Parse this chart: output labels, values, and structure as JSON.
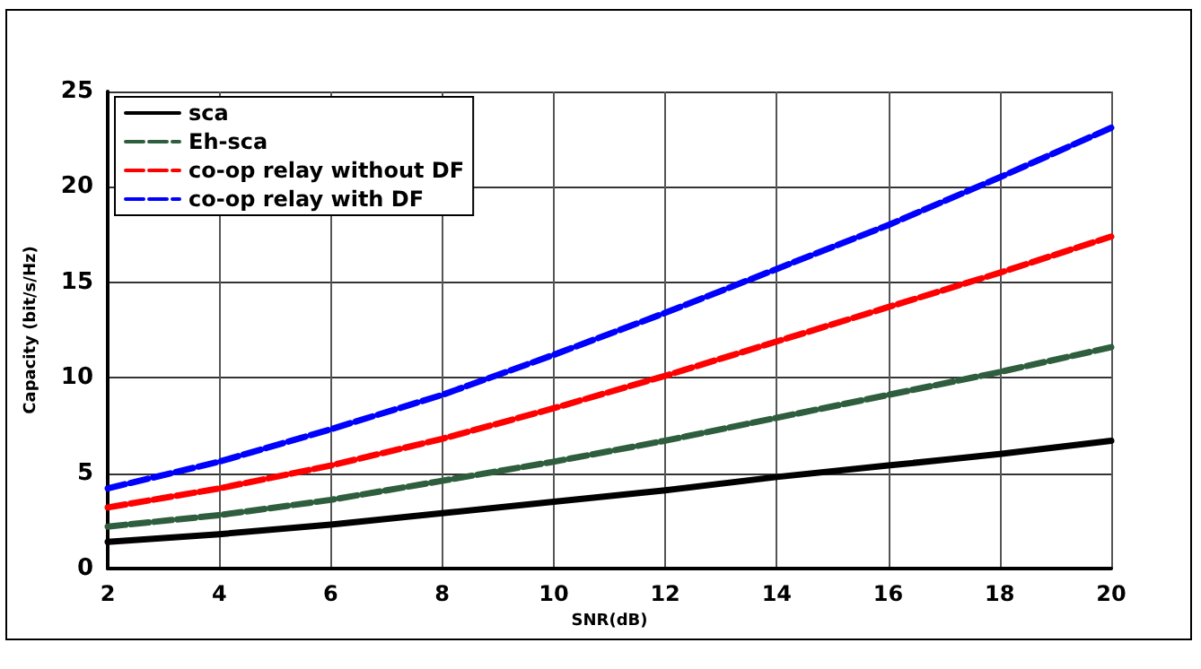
{
  "chart_data": {
    "type": "line",
    "xlabel": "SNR(dB)",
    "ylabel": "Capacity (bit/s/Hz)",
    "x": [
      2,
      4,
      6,
      8,
      10,
      12,
      14,
      16,
      18,
      20
    ],
    "series": [
      {
        "name": "sca",
        "color": "#000000",
        "line_style": "solid",
        "values": [
          1.4,
          1.8,
          2.3,
          2.9,
          3.5,
          4.1,
          4.8,
          5.4,
          6.0,
          6.7
        ]
      },
      {
        "name": "Eh-sca",
        "color": "#2e5e3e",
        "line_style": "dashed",
        "values": [
          2.2,
          2.8,
          3.6,
          4.6,
          5.6,
          6.7,
          7.9,
          9.1,
          10.3,
          11.6
        ]
      },
      {
        "name": "co-op relay without DF",
        "color": "#ff0000",
        "line_style": "dashed",
        "values": [
          3.2,
          4.2,
          5.4,
          6.8,
          8.4,
          10.1,
          11.9,
          13.7,
          15.5,
          17.4
        ]
      },
      {
        "name": "co-op relay with DF",
        "color": "#0000ff",
        "line_style": "dashed",
        "values": [
          4.2,
          5.6,
          7.3,
          9.1,
          11.2,
          13.4,
          15.7,
          18.0,
          20.5,
          23.1
        ]
      }
    ],
    "xlim": [
      2,
      20
    ],
    "xticks": [
      2,
      4,
      6,
      8,
      10,
      12,
      14,
      16,
      18,
      20
    ],
    "ylim": [
      0,
      25
    ],
    "yticks": [
      0,
      5,
      10,
      15,
      20,
      25
    ],
    "grid": true,
    "legend": "top left",
    "marker": "none"
  }
}
